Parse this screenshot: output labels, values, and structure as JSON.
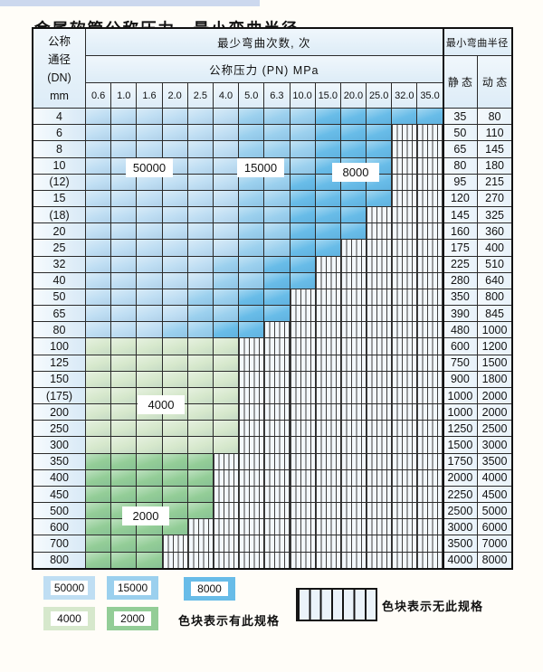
{
  "page": {
    "title": "金属软管公称压力、最小弯曲半径"
  },
  "table": {
    "corner_header": {
      "line1": "公称",
      "line2": "通径",
      "line3": "(DN)",
      "line4": "mm"
    },
    "bend_cycles_header": "最少弯曲次数, 次",
    "pressure_header": "公称压力 (PN) MPa",
    "radius_header": "最小弯曲半径",
    "static_header": "静 态",
    "dynamic_header": "动 态",
    "pressure_columns": [
      "0.6",
      "1.0",
      "1.6",
      "2.0",
      "2.5",
      "4.0",
      "5.0",
      "6.3",
      "10.0",
      "15.0",
      "20.0",
      "25.0",
      "32.0",
      "35.0"
    ],
    "rows": [
      {
        "dn": "4",
        "static": "35",
        "dynamic": "80",
        "bands": [
          [
            "blue_50000",
            6
          ],
          [
            "blue_15000",
            3
          ],
          [
            "blue_8000",
            5
          ]
        ]
      },
      {
        "dn": "6",
        "static": "50",
        "dynamic": "110",
        "bands": [
          [
            "blue_50000",
            6
          ],
          [
            "blue_15000",
            3
          ],
          [
            "blue_8000",
            3
          ],
          [
            "none",
            2
          ]
        ]
      },
      {
        "dn": "8",
        "static": "65",
        "dynamic": "145",
        "bands": [
          [
            "blue_50000",
            6
          ],
          [
            "blue_15000",
            3
          ],
          [
            "blue_8000",
            3
          ],
          [
            "none",
            2
          ]
        ]
      },
      {
        "dn": "10",
        "static": "80",
        "dynamic": "180",
        "bands": [
          [
            "blue_50000",
            6
          ],
          [
            "blue_15000",
            3
          ],
          [
            "blue_8000",
            3
          ],
          [
            "none",
            2
          ]
        ]
      },
      {
        "dn": "(12)",
        "static": "95",
        "dynamic": "215",
        "bands": [
          [
            "blue_50000",
            6
          ],
          [
            "blue_15000",
            2
          ],
          [
            "blue_8000",
            4
          ],
          [
            "none",
            2
          ]
        ]
      },
      {
        "dn": "15",
        "static": "120",
        "dynamic": "270",
        "bands": [
          [
            "blue_50000",
            6
          ],
          [
            "blue_15000",
            2
          ],
          [
            "blue_8000",
            4
          ],
          [
            "none",
            2
          ]
        ]
      },
      {
        "dn": "(18)",
        "static": "145",
        "dynamic": "325",
        "bands": [
          [
            "blue_50000",
            6
          ],
          [
            "blue_15000",
            2
          ],
          [
            "blue_8000",
            3
          ],
          [
            "none",
            3
          ]
        ]
      },
      {
        "dn": "20",
        "static": "160",
        "dynamic": "360",
        "bands": [
          [
            "blue_50000",
            6
          ],
          [
            "blue_15000",
            2
          ],
          [
            "blue_8000",
            3
          ],
          [
            "none",
            3
          ]
        ]
      },
      {
        "dn": "25",
        "static": "175",
        "dynamic": "400",
        "bands": [
          [
            "blue_50000",
            6
          ],
          [
            "blue_15000",
            2
          ],
          [
            "blue_8000",
            2
          ],
          [
            "none",
            4
          ]
        ]
      },
      {
        "dn": "32",
        "static": "225",
        "dynamic": "510",
        "bands": [
          [
            "blue_50000",
            5
          ],
          [
            "blue_15000",
            2
          ],
          [
            "blue_8000",
            2
          ],
          [
            "none",
            5
          ]
        ]
      },
      {
        "dn": "40",
        "static": "280",
        "dynamic": "640",
        "bands": [
          [
            "blue_50000",
            5
          ],
          [
            "blue_15000",
            2
          ],
          [
            "blue_8000",
            2
          ],
          [
            "none",
            5
          ]
        ]
      },
      {
        "dn": "50",
        "static": "350",
        "dynamic": "800",
        "bands": [
          [
            "blue_50000",
            4
          ],
          [
            "blue_15000",
            2
          ],
          [
            "blue_8000",
            2
          ],
          [
            "none",
            6
          ]
        ]
      },
      {
        "dn": "65",
        "static": "390",
        "dynamic": "845",
        "bands": [
          [
            "blue_50000",
            4
          ],
          [
            "blue_15000",
            2
          ],
          [
            "blue_8000",
            2
          ],
          [
            "none",
            6
          ]
        ]
      },
      {
        "dn": "80",
        "static": "480",
        "dynamic": "1000",
        "bands": [
          [
            "blue_50000",
            3
          ],
          [
            "blue_15000",
            2
          ],
          [
            "blue_8000",
            2
          ],
          [
            "none",
            7
          ]
        ]
      },
      {
        "dn": "100",
        "static": "600",
        "dynamic": "1200",
        "bands": [
          [
            "green_4000",
            6
          ],
          [
            "none",
            8
          ]
        ]
      },
      {
        "dn": "125",
        "static": "750",
        "dynamic": "1500",
        "bands": [
          [
            "green_4000",
            6
          ],
          [
            "none",
            8
          ]
        ]
      },
      {
        "dn": "150",
        "static": "900",
        "dynamic": "1800",
        "bands": [
          [
            "green_4000",
            6
          ],
          [
            "none",
            8
          ]
        ]
      },
      {
        "dn": "(175)",
        "static": "1000",
        "dynamic": "2000",
        "bands": [
          [
            "green_4000",
            6
          ],
          [
            "none",
            8
          ]
        ]
      },
      {
        "dn": "200",
        "static": "1000",
        "dynamic": "2000",
        "bands": [
          [
            "green_4000",
            6
          ],
          [
            "none",
            8
          ]
        ]
      },
      {
        "dn": "250",
        "static": "1250",
        "dynamic": "2500",
        "bands": [
          [
            "green_4000",
            6
          ],
          [
            "none",
            8
          ]
        ]
      },
      {
        "dn": "300",
        "static": "1500",
        "dynamic": "3000",
        "bands": [
          [
            "green_4000",
            6
          ],
          [
            "none",
            8
          ]
        ]
      },
      {
        "dn": "350",
        "static": "1750",
        "dynamic": "3500",
        "bands": [
          [
            "green_2000",
            5
          ],
          [
            "none",
            9
          ]
        ]
      },
      {
        "dn": "400",
        "static": "2000",
        "dynamic": "4000",
        "bands": [
          [
            "green_2000",
            5
          ],
          [
            "none",
            9
          ]
        ]
      },
      {
        "dn": "450",
        "static": "2250",
        "dynamic": "4500",
        "bands": [
          [
            "green_2000",
            5
          ],
          [
            "none",
            9
          ]
        ]
      },
      {
        "dn": "500",
        "static": "2500",
        "dynamic": "5000",
        "bands": [
          [
            "green_2000",
            5
          ],
          [
            "none",
            9
          ]
        ]
      },
      {
        "dn": "600",
        "static": "3000",
        "dynamic": "6000",
        "bands": [
          [
            "green_2000",
            4
          ],
          [
            "none",
            10
          ]
        ]
      },
      {
        "dn": "700",
        "static": "3500",
        "dynamic": "7000",
        "bands": [
          [
            "green_2000",
            3
          ],
          [
            "none",
            11
          ]
        ]
      },
      {
        "dn": "800",
        "static": "4000",
        "dynamic": "8000",
        "bands": [
          [
            "green_2000",
            3
          ],
          [
            "none",
            11
          ]
        ]
      }
    ],
    "region_labels": [
      "50000",
      "15000",
      "8000",
      "4000",
      "2000"
    ]
  },
  "legend": {
    "items": [
      {
        "label": "50000",
        "color_key": "blue_50000"
      },
      {
        "label": "15000",
        "color_key": "blue_15000"
      },
      {
        "label": "8000",
        "color_key": "blue_8000"
      },
      {
        "label": "4000",
        "color_key": "green_4000"
      },
      {
        "label": "2000",
        "color_key": "green_2000"
      }
    ],
    "has_spec_note": "色块表示有此规格",
    "no_spec_note": "色块表示无此规格"
  },
  "colors": {
    "blue_50000": "#bfdef3",
    "blue_15000": "#9bd0ee",
    "blue_8000": "#68bce8",
    "green_4000": "#d6e8cc",
    "green_2000": "#93cd97",
    "hatch_bg": "#f3f8fc",
    "grid_line": "#2b2b2b",
    "header_bg": "#e7f1fa",
    "accent_strip": "#ccd8ee"
  }
}
